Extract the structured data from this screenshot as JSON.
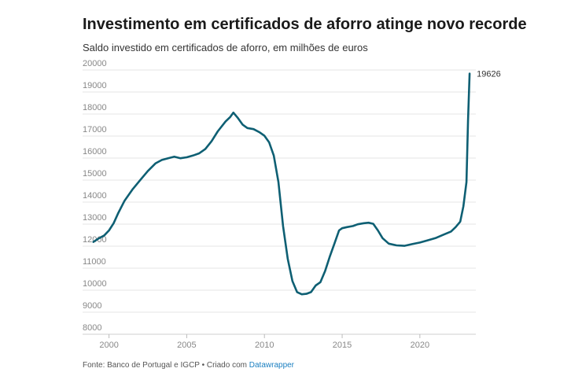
{
  "title": "Investimento em certificados de aforro atinge novo recorde",
  "subtitle": "Saldo investido em certificados de aforro, em milhões de euros",
  "footer": {
    "source": "Fonte: Banco de Portugal e IGCP • Criado com ",
    "tool": "Datawrapper"
  },
  "chart_data": {
    "type": "line",
    "title": "Investimento em certificados de aforro atinge novo recorde",
    "subtitle": "Saldo investido em certificados de aforro, em milhões de euros",
    "xlabel": "",
    "ylabel": "",
    "xlim": [
      1998.3,
      2023.6
    ],
    "ylim": [
      8000,
      20000
    ],
    "x_ticks": [
      2000,
      2005,
      2010,
      2015,
      2020
    ],
    "y_ticks": [
      8000,
      9000,
      10000,
      11000,
      12000,
      13000,
      14000,
      15000,
      16000,
      17000,
      18000,
      19000,
      20000
    ],
    "grid": "horizontal",
    "legend": "none",
    "line_color": "#0e5f73",
    "end_label": "19626",
    "series": [
      {
        "x": [
          1999.0,
          1999.3,
          1999.7,
          2000.0,
          2000.3,
          2000.6,
          2001.0,
          2001.5,
          2002.0,
          2002.5,
          2003.0,
          2003.4,
          2003.8,
          2004.2,
          2004.6,
          2005.0,
          2005.4,
          2005.8,
          2006.2,
          2006.6,
          2007.0,
          2007.5,
          2007.8,
          2008.0,
          2008.3,
          2008.6,
          2008.9,
          2009.3,
          2009.7,
          2010.0,
          2010.3,
          2010.6,
          2010.9,
          2011.2,
          2011.5,
          2011.8,
          2012.1,
          2012.4,
          2012.7,
          2013.0,
          2013.3,
          2013.6,
          2013.9,
          2014.2,
          2014.5,
          2014.8,
          2015.0,
          2015.3,
          2015.7,
          2016.0,
          2016.4,
          2016.7,
          2017.0,
          2017.3,
          2017.6,
          2018.0,
          2018.5,
          2019.0,
          2019.5,
          2020.0,
          2020.5,
          2021.0,
          2021.5,
          2022.0,
          2022.3,
          2022.6,
          2022.8,
          2023.0,
          2023.1,
          2023.2
        ],
        "y": [
          11980,
          12120,
          12280,
          12500,
          12830,
          13300,
          13850,
          14350,
          14780,
          15200,
          15550,
          15700,
          15780,
          15850,
          15780,
          15820,
          15900,
          16000,
          16200,
          16550,
          17000,
          17450,
          17650,
          17850,
          17600,
          17300,
          17150,
          17100,
          16950,
          16800,
          16500,
          15900,
          14700,
          12700,
          11200,
          10200,
          9700,
          9600,
          9620,
          9700,
          10000,
          10150,
          10650,
          11300,
          11900,
          12500,
          12600,
          12650,
          12700,
          12780,
          12830,
          12850,
          12800,
          12500,
          12150,
          11900,
          11820,
          11800,
          11880,
          11950,
          12050,
          12150,
          12300,
          12450,
          12650,
          12900,
          13600,
          14700,
          17500,
          19626
        ]
      }
    ]
  }
}
